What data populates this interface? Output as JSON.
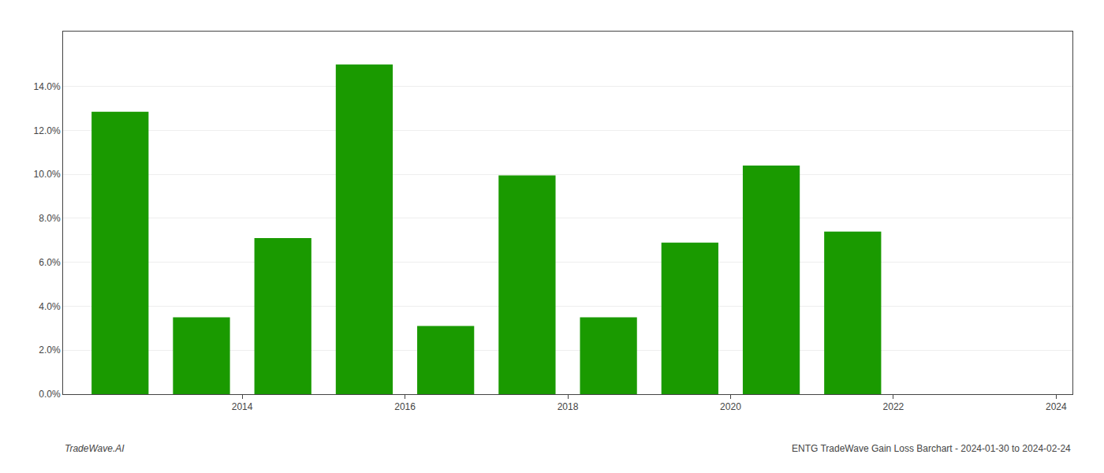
{
  "chart_data": {
    "type": "bar",
    "x": [
      2012.5,
      2013.5,
      2014.5,
      2015.5,
      2016.5,
      2017.5,
      2018.5,
      2019.5,
      2020.5,
      2021.5,
      2022.5
    ],
    "values": [
      0.1285,
      0.035,
      0.071,
      0.15,
      0.031,
      0.0995,
      0.035,
      0.069,
      0.104,
      0.074,
      0.0
    ],
    "color": "#1a9a00",
    "xlim": [
      2011.8,
      2024.2
    ],
    "xticks": [
      2014,
      2016,
      2018,
      2020,
      2022,
      2024
    ],
    "ylim": [
      0,
      0.165
    ],
    "yticks": [
      {
        "value": 0.0,
        "label": "0.0%"
      },
      {
        "value": 0.02,
        "label": "2.0%"
      },
      {
        "value": 0.04,
        "label": "4.0%"
      },
      {
        "value": 0.06,
        "label": "6.0%"
      },
      {
        "value": 0.08,
        "label": "8.0%"
      },
      {
        "value": 0.1,
        "label": "10.0%"
      },
      {
        "value": 0.12,
        "label": "12.0%"
      },
      {
        "value": 0.14,
        "label": "14.0%"
      }
    ],
    "grid": true,
    "annotations": [
      {
        "text": "TradeWave.AI"
      },
      {
        "text": "ENTG TradeWave Gain Loss Barchart - 2024-01-30 to 2024-02-24"
      }
    ]
  }
}
